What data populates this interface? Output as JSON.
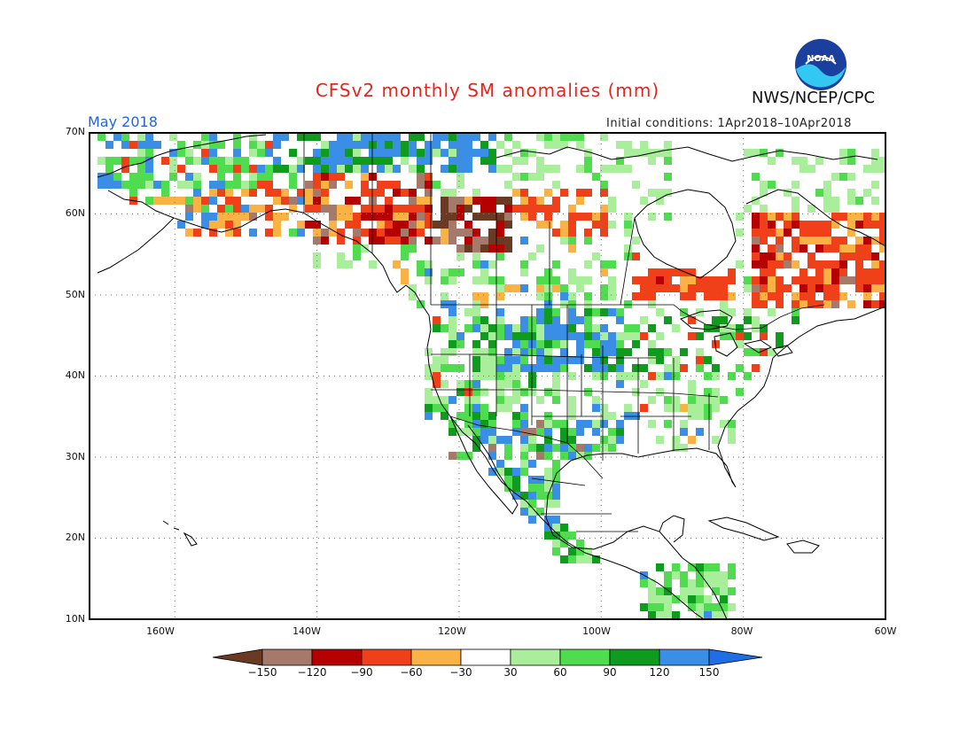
{
  "title": "CFSv2 monthly SM anomalies (mm)",
  "valid_label": "May 2018",
  "initial_conditions": "Initial conditions: 1Apr2018–10Apr2018",
  "organization": "NWS/NCEP/CPC",
  "logo_text": "NOAA",
  "map": {
    "projection": "lat-lon",
    "lon_range": [
      -172,
      -60
    ],
    "lat_range": [
      10,
      70
    ],
    "grid_lines": "dotted",
    "lat_labels": [
      "70N",
      "60N",
      "50N",
      "40N",
      "30N",
      "20N",
      "10N"
    ],
    "lon_labels": [
      "160W",
      "140W",
      "120W",
      "100W",
      "80W",
      "60W"
    ]
  },
  "legend": {
    "placement": "bottom-center",
    "tick_labels": [
      "−150",
      "−120",
      "−90",
      "−60",
      "−30",
      "30",
      "60",
      "90",
      "120",
      "150"
    ],
    "bins": [
      {
        "range": "<-150",
        "color": "#6b3a22"
      },
      {
        "range": "-150..-120",
        "color": "#a57a6a"
      },
      {
        "range": "-120..-90",
        "color": "#b50000"
      },
      {
        "range": "-90..-60",
        "color": "#f0401a"
      },
      {
        "range": "-60..-30",
        "color": "#f9b243"
      },
      {
        "range": "-30..30",
        "color": "#ffffff"
      },
      {
        "range": "30..60",
        "color": "#a9ee9a"
      },
      {
        "range": "60..90",
        "color": "#4fdc4f"
      },
      {
        "range": "90..120",
        "color": "#0f9b1e"
      },
      {
        "range": "120..150",
        "color": "#3a8ee6"
      },
      {
        "range": ">150",
        "color": "#1e6ee6"
      }
    ]
  },
  "anomaly_regions": [
    {
      "name": "alaska-north-slope",
      "value": "wet",
      "level": 120
    },
    {
      "name": "yukon-bc-interior",
      "value": "dry",
      "level": -90
    },
    {
      "name": "northern-canada-arctic",
      "value": "wet",
      "level": 120
    },
    {
      "name": "alberta-saskatchewan",
      "value": "dry",
      "level": -150
    },
    {
      "name": "northern-ontario-quebec",
      "value": "dry",
      "level": -90
    },
    {
      "name": "labrador-northern-quebec",
      "value": "dry",
      "level": -120
    },
    {
      "name": "northern-plains",
      "value": "wet",
      "level": 120
    },
    {
      "name": "southwest-us-mexico",
      "value": "wet",
      "level": 90
    },
    {
      "name": "southeast-us",
      "value": "mixed",
      "level": 60
    }
  ]
}
